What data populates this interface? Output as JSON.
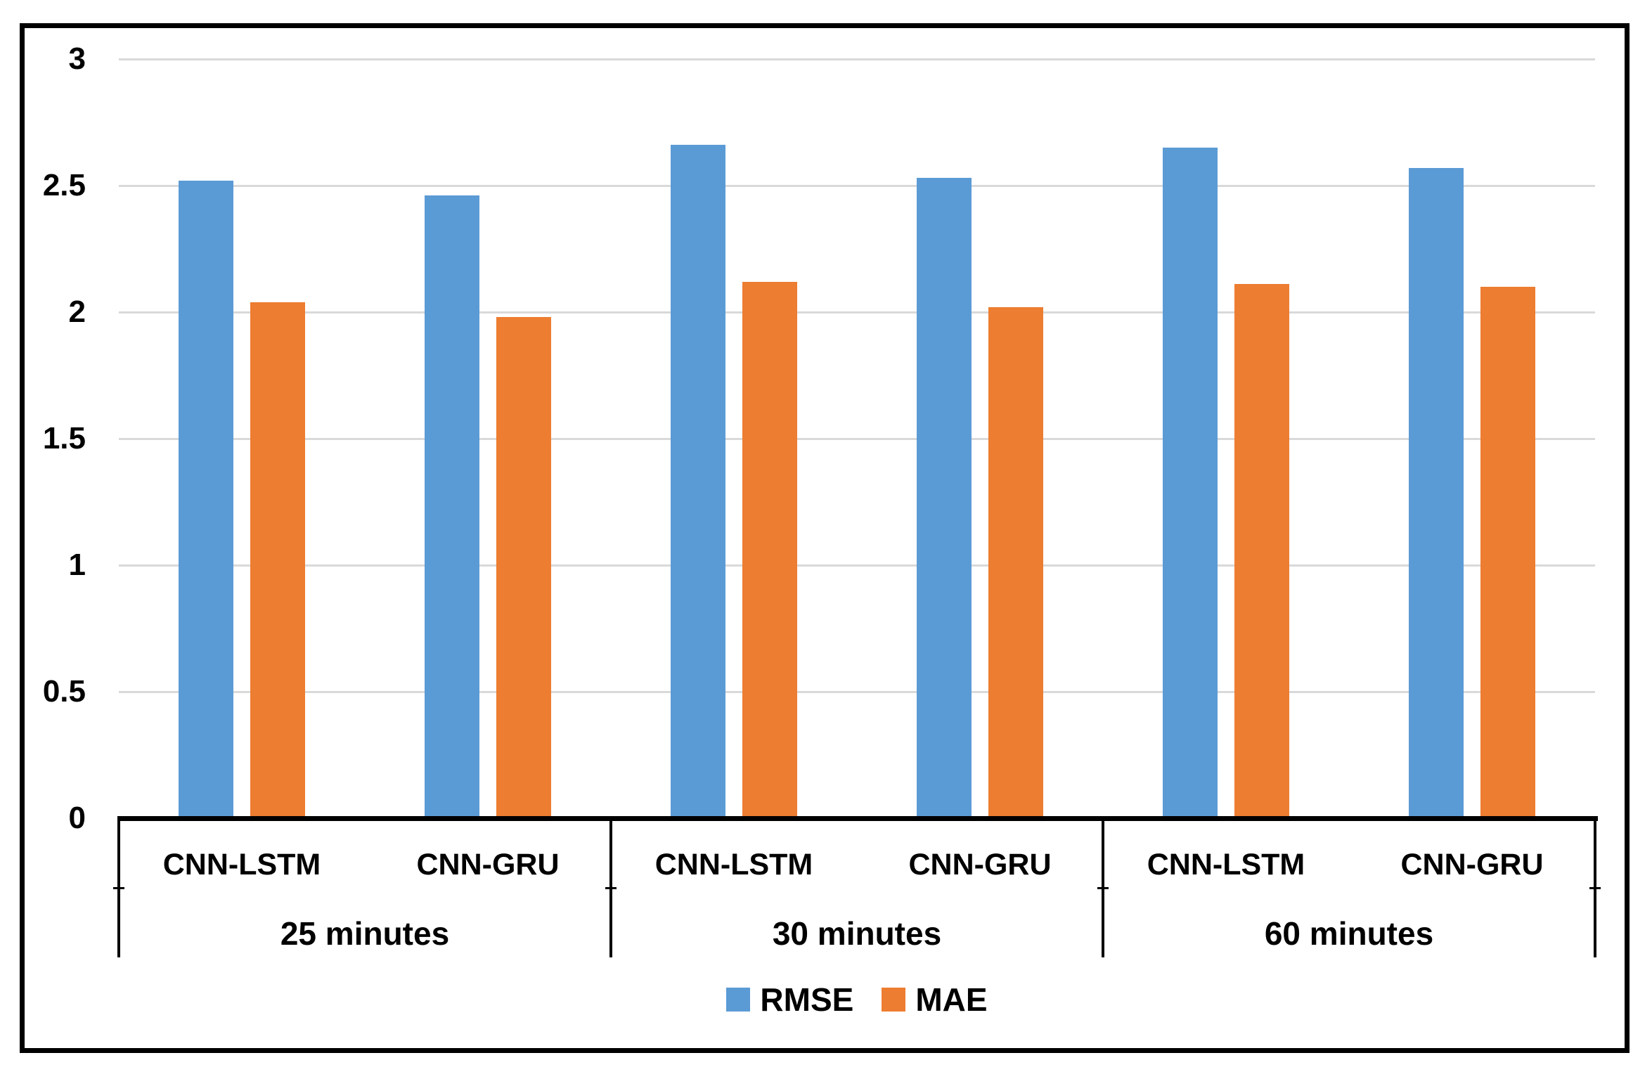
{
  "chart_data": {
    "type": "bar",
    "title": "",
    "categories": [
      "CNN-LSTM",
      "CNN-GRU",
      "CNN-LSTM",
      "CNN-GRU",
      "CNN-LSTM",
      "CNN-GRU"
    ],
    "groups": [
      {
        "label": "25 minutes",
        "categories": [
          "CNN-LSTM",
          "CNN-GRU"
        ]
      },
      {
        "label": "30 minutes",
        "categories": [
          "CNN-LSTM",
          "CNN-GRU"
        ]
      },
      {
        "label": "60 minutes",
        "categories": [
          "CNN-LSTM",
          "CNN-GRU"
        ]
      }
    ],
    "series": [
      {
        "name": "RMSE",
        "color": "#5B9BD5",
        "values": [
          2.52,
          2.46,
          2.66,
          2.53,
          2.65,
          2.57
        ]
      },
      {
        "name": "MAE",
        "color": "#ED7D31",
        "values": [
          2.04,
          1.98,
          2.12,
          2.02,
          2.11,
          2.1
        ]
      }
    ],
    "ylim": [
      0,
      3
    ],
    "yticks": [
      0,
      0.5,
      1,
      1.5,
      2,
      2.5,
      3
    ],
    "ytick_labels": [
      "0",
      "0.5",
      "1",
      "1.5",
      "2",
      "2.5",
      "3"
    ],
    "grid": true,
    "gridline_color": "#D9D9D9",
    "axis_color": "#000000",
    "legend_position": "bottom"
  },
  "legend": {
    "items": [
      {
        "label": "RMSE",
        "color": "#5B9BD5"
      },
      {
        "label": "MAE",
        "color": "#ED7D31"
      }
    ]
  }
}
